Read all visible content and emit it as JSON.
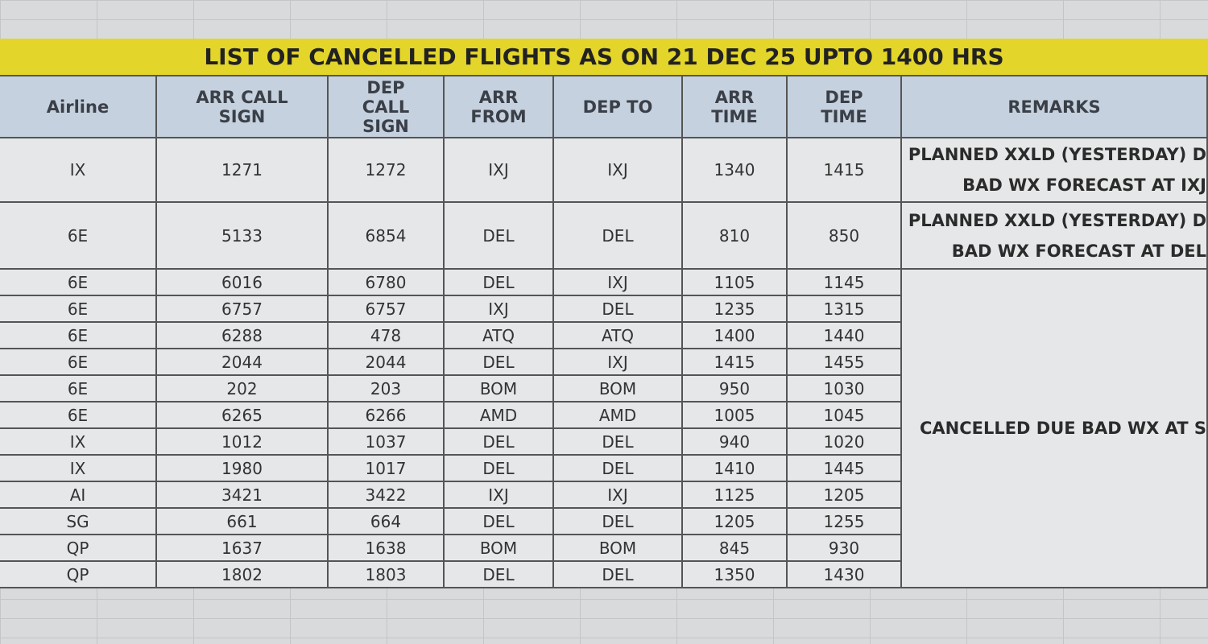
{
  "title": "LIST OF CANCELLED FLIGHTS AS ON 21 DEC 25 UPTO 1400 HRS",
  "table": {
    "headers": [
      "Airline",
      "ARR CALL SIGN",
      "DEP CALL SIGN",
      "ARR FROM",
      "DEP TO",
      "ARR TIME",
      "DEP TIME",
      "REMARKS"
    ],
    "rows": [
      [
        "IX",
        "1271",
        "1272",
        "IXJ",
        "IXJ",
        "1340",
        "1415"
      ],
      [
        "6E",
        "5133",
        "6854",
        "DEL",
        "DEL",
        "810",
        "850"
      ],
      [
        "6E",
        "6016",
        "6780",
        "DEL",
        "IXJ",
        "1105",
        "1145"
      ],
      [
        "6E",
        "6757",
        "6757",
        "IXJ",
        "DEL",
        "1235",
        "1315"
      ],
      [
        "6E",
        "6288",
        "478",
        "ATQ",
        "ATQ",
        "1400",
        "1440"
      ],
      [
        "6E",
        "2044",
        "2044",
        "DEL",
        "IXJ",
        "1415",
        "1455"
      ],
      [
        "6E",
        "202",
        "203",
        "BOM",
        "BOM",
        "950",
        "1030"
      ],
      [
        "6E",
        "6265",
        "6266",
        "AMD",
        "AMD",
        "1005",
        "1045"
      ],
      [
        "IX",
        "1012",
        "1037",
        "DEL",
        "DEL",
        "940",
        "1020"
      ],
      [
        "IX",
        "1980",
        "1017",
        "DEL",
        "DEL",
        "1410",
        "1445"
      ],
      [
        "AI",
        "3421",
        "3422",
        "IXJ",
        "IXJ",
        "1125",
        "1205"
      ],
      [
        "SG",
        "661",
        "664",
        "DEL",
        "DEL",
        "1205",
        "1255"
      ],
      [
        "QP",
        "1637",
        "1638",
        "BOM",
        "BOM",
        "845",
        "930"
      ],
      [
        "QP",
        "1802",
        "1803",
        "DEL",
        "DEL",
        "1350",
        "1430"
      ]
    ],
    "remarks": [
      [
        "PLANNED XXLD (YESTERDAY) D",
        "BAD WX FORECAST AT IXJ"
      ],
      [
        "PLANNED XXLD (YESTERDAY) D",
        "BAD WX FORECAST AT DEL"
      ],
      [
        "CANCELLED DUE BAD WX AT S"
      ]
    ]
  }
}
